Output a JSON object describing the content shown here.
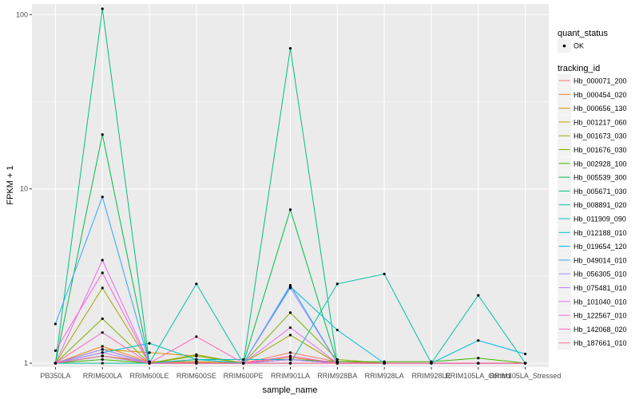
{
  "chart_data": {
    "type": "line",
    "xlabel": "sample_name",
    "ylabel": "FPKM + 1",
    "y_scale": "log10",
    "ylim": [
      0.95,
      115
    ],
    "y_ticks": [
      1,
      10,
      100
    ],
    "y_tick_labels": [
      "1",
      "10",
      "100"
    ],
    "categories": [
      "PB350LA",
      "RRIM600LA",
      "RRIM600LE",
      "RRIM600SE",
      "RRIM600PE",
      "RRIM901LA",
      "RRIM928BA",
      "RRIM928LA",
      "RRIM928LE",
      "RRIM105LA_Control",
      "RRIM105LA_Stressed"
    ],
    "grid": true,
    "background_color": "#ebebeb",
    "legend_position": "right",
    "legend": {
      "shape_title": "quant_status",
      "shape_entries": [
        "OK"
      ],
      "color_title": "tracking_id"
    },
    "series": [
      {
        "name": "Hb_000071_200",
        "color": "#F8766D",
        "values": [
          1.0,
          1.2,
          1.01,
          1.01,
          1.0,
          1.15,
          1.02,
          1.0,
          1.0,
          1.0,
          1.0
        ]
      },
      {
        "name": "Hb_000454_020",
        "color": "#EA8331",
        "values": [
          1.0,
          1.25,
          1.02,
          1.02,
          1.0,
          1.08,
          1.0,
          1.0,
          1.0,
          1.0,
          1.0
        ]
      },
      {
        "name": "Hb_000656_130",
        "color": "#D89000",
        "values": [
          1.0,
          1.2,
          1.15,
          1.1,
          1.0,
          1.05,
          1.0,
          1.0,
          1.0,
          1.0,
          1.0
        ]
      },
      {
        "name": "Hb_001217_060",
        "color": "#C09B00",
        "values": [
          1.0,
          1.1,
          1.02,
          1.02,
          1.0,
          1.05,
          1.0,
          1.0,
          1.0,
          1.0,
          1.0
        ]
      },
      {
        "name": "Hb_001673_030",
        "color": "#A3A500",
        "values": [
          1.0,
          2.7,
          1.0,
          1.12,
          1.0,
          1.45,
          1.0,
          1.0,
          1.0,
          1.0,
          1.0
        ]
      },
      {
        "name": "Hb_001676_030",
        "color": "#7CAE00",
        "values": [
          1.0,
          1.8,
          1.0,
          1.1,
          1.0,
          1.95,
          1.05,
          1.0,
          1.0,
          1.0,
          1.0
        ]
      },
      {
        "name": "Hb_002928_100",
        "color": "#39B600",
        "values": [
          1.0,
          1.05,
          1.0,
          1.05,
          1.0,
          1.05,
          1.02,
          1.02,
          1.02,
          1.07,
          1.0
        ]
      },
      {
        "name": "Hb_005539_300",
        "color": "#00BB4E",
        "values": [
          1.0,
          20.5,
          1.0,
          1.0,
          1.0,
          7.6,
          1.0,
          1.0,
          1.0,
          1.0,
          1.0
        ]
      },
      {
        "name": "Hb_005671_030",
        "color": "#00BF7D",
        "values": [
          1.0,
          108,
          1.0,
          1.0,
          1.0,
          64,
          1.0,
          1.0,
          1.0,
          1.0,
          1.0
        ]
      },
      {
        "name": "Hb_008891_020",
        "color": "#00C1A3",
        "values": [
          1.0,
          1.0,
          1.0,
          2.85,
          1.0,
          1.0,
          2.85,
          3.25,
          1.0,
          2.45,
          1.0
        ]
      },
      {
        "name": "Hb_011909_090",
        "color": "#00BFC4",
        "values": [
          1.0,
          1.15,
          1.3,
          1.05,
          1.05,
          1.05,
          1.0,
          1.0,
          1.0,
          1.0,
          1.0
        ]
      },
      {
        "name": "Hb_012188_010",
        "color": "#00BAE0",
        "values": [
          1.0,
          1.1,
          1.0,
          1.05,
          1.0,
          2.75,
          1.55,
          1.0,
          1.0,
          1.35,
          1.13
        ]
      },
      {
        "name": "Hb_019654_120",
        "color": "#00B0F6",
        "values": [
          1.0,
          1.1,
          1.0,
          1.0,
          1.0,
          1.05,
          1.0,
          1.0,
          1.0,
          1.0,
          1.0
        ]
      },
      {
        "name": "Hb_049014_010",
        "color": "#35A2FF",
        "values": [
          1.68,
          9.0,
          1.0,
          1.0,
          1.0,
          2.8,
          1.0,
          1.0,
          1.0,
          1.0,
          1.0
        ]
      },
      {
        "name": "Hb_056305_010",
        "color": "#9590FF",
        "values": [
          1.0,
          1.2,
          1.0,
          1.0,
          1.0,
          2.7,
          1.0,
          1.0,
          1.0,
          1.0,
          1.0
        ]
      },
      {
        "name": "Hb_075481_010",
        "color": "#C77CFF",
        "values": [
          1.0,
          1.15,
          1.0,
          1.0,
          1.0,
          1.05,
          1.0,
          1.0,
          1.0,
          1.0,
          1.0
        ]
      },
      {
        "name": "Hb_101040_010",
        "color": "#E76BF3",
        "values": [
          1.0,
          3.9,
          1.0,
          1.0,
          1.0,
          1.6,
          1.0,
          1.0,
          1.0,
          1.0,
          1.0
        ]
      },
      {
        "name": "Hb_122567_010",
        "color": "#FA62DB",
        "values": [
          1.18,
          3.3,
          1.0,
          1.0,
          1.0,
          1.0,
          1.0,
          1.0,
          1.0,
          1.0,
          1.0
        ]
      },
      {
        "name": "Hb_142068_020",
        "color": "#FF62BC",
        "values": [
          1.0,
          1.5,
          1.0,
          1.42,
          1.0,
          1.1,
          1.0,
          1.0,
          1.0,
          1.0,
          1.0
        ]
      },
      {
        "name": "Hb_187661_010",
        "color": "#FF6C91",
        "values": [
          1.0,
          1.1,
          1.0,
          1.0,
          1.0,
          1.0,
          1.0,
          1.0,
          1.0,
          1.0,
          1.0
        ]
      }
    ]
  }
}
